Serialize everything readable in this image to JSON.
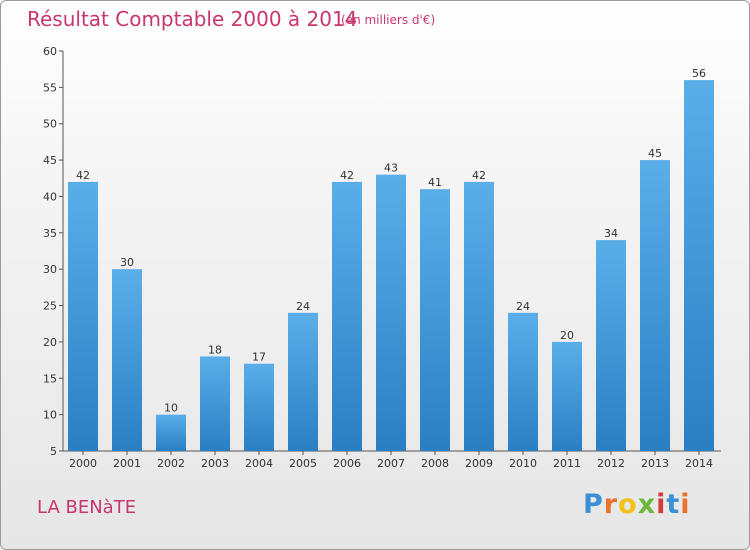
{
  "header": {
    "title": "Résultat Comptable 2000 à 2014",
    "subtitle": "(en milliers d'€)"
  },
  "footer": {
    "place": "LA BENàTE",
    "brand": "Proxiti",
    "brand_letters": [
      "P",
      "r",
      "o",
      "x",
      "i",
      "t",
      "i"
    ],
    "brand_colors": [
      "#3a8fd6",
      "#e8742b",
      "#f2c21b",
      "#6cb83c",
      "#d63b3b",
      "#3a8fd6",
      "#e8742b"
    ]
  },
  "colors": {
    "title": "#c8366d",
    "bar_light": "#5aaee8",
    "bar_dark": "#2a7fc4",
    "axis": "#555555"
  },
  "chart_data": {
    "type": "bar",
    "title": "Résultat Comptable 2000 à 2014",
    "subtitle": "(en milliers d'€)",
    "xlabel": "",
    "ylabel": "",
    "categories": [
      "2000",
      "2001",
      "2002",
      "2003",
      "2004",
      "2005",
      "2006",
      "2007",
      "2008",
      "2009",
      "2010",
      "2011",
      "2012",
      "2013",
      "2014"
    ],
    "values": [
      42,
      30,
      10,
      18,
      17,
      24,
      42,
      43,
      41,
      42,
      24,
      20,
      34,
      45,
      56
    ],
    "ylim": [
      5,
      60
    ],
    "yticks": [
      5,
      10,
      15,
      20,
      25,
      30,
      35,
      40,
      45,
      50,
      55,
      60
    ],
    "grid": false,
    "legend": "none"
  }
}
